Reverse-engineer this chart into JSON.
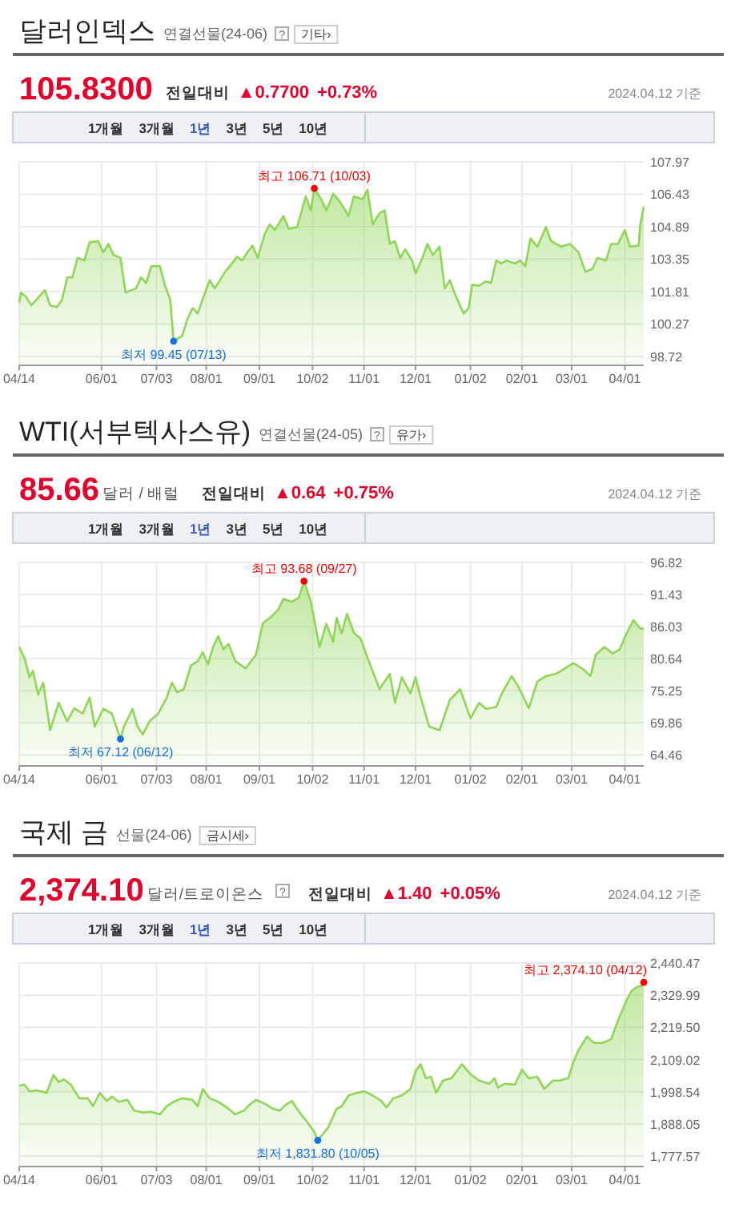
{
  "chart_data": [
    {
      "type": "area",
      "title": "달러인덱스",
      "subtitle": "연결선물(24-06)",
      "annotations": [
        "?",
        "기타›",
        "105.8300",
        "전일대비",
        "▲0.7700",
        "+0.73%",
        "2024.04.12 기준",
        "1개월",
        "3개월",
        "1년",
        "3년",
        "5년",
        "10년",
        {
          "text": "최고 106.71 (10/03)",
          "x": "2023-10-03",
          "y": 106.71
        },
        {
          "text": "최저 99.45 (07/13)",
          "x": "2023-07-13",
          "y": 99.45
        }
      ],
      "x": [
        "2023-04-14",
        "2023-04-15",
        "2023-04-18",
        "2023-04-21",
        "2023-04-24",
        "2023-04-29",
        "2023-05-02",
        "2023-05-06",
        "2023-05-09",
        "2023-05-12",
        "2023-05-15",
        "2023-05-18",
        "2023-05-22",
        "2023-05-25",
        "2023-05-30",
        "2023-06-02",
        "2023-06-05",
        "2023-06-08",
        "2023-06-12",
        "2023-06-15",
        "2023-06-21",
        "2023-06-24",
        "2023-06-27",
        "2023-06-30",
        "2023-07-05",
        "2023-07-08",
        "2023-07-11",
        "2023-07-13",
        "2023-07-18",
        "2023-07-21",
        "2023-07-24",
        "2023-07-27",
        "2023-07-31",
        "2023-08-03",
        "2023-08-06",
        "2023-08-09",
        "2023-08-12",
        "2023-08-16",
        "2023-08-19",
        "2023-08-22",
        "2023-08-25",
        "2023-08-28",
        "2023-08-31",
        "2023-09-04",
        "2023-09-07",
        "2023-09-10",
        "2023-09-15",
        "2023-09-18",
        "2023-09-23",
        "2023-09-28",
        "2023-10-01",
        "2023-10-03",
        "2023-10-07",
        "2023-10-10",
        "2023-10-14",
        "2023-10-18",
        "2023-10-23",
        "2023-10-26",
        "2023-10-31",
        "2023-11-03",
        "2023-11-06",
        "2023-11-10",
        "2023-11-13",
        "2023-11-16",
        "2023-11-19",
        "2023-11-22",
        "2023-11-25",
        "2023-11-29",
        "2023-12-01",
        "2023-12-05",
        "2023-12-08",
        "2023-12-11",
        "2023-12-15",
        "2023-12-18",
        "2023-12-21",
        "2023-12-24",
        "2023-12-29",
        "2024-01-01",
        "2024-01-03",
        "2024-01-07",
        "2024-01-11",
        "2024-01-14",
        "2024-01-17",
        "2024-01-20",
        "2024-01-23",
        "2024-01-28",
        "2024-01-31",
        "2024-02-03",
        "2024-02-06",
        "2024-02-10",
        "2024-02-15",
        "2024-02-18",
        "2024-02-24",
        "2024-02-29",
        "2024-03-05",
        "2024-03-09",
        "2024-03-13",
        "2024-03-16",
        "2024-03-21",
        "2024-03-24",
        "2024-03-28",
        "2024-04-01",
        "2024-04-04",
        "2024-04-09",
        "2024-04-10",
        "2024-04-12"
      ],
      "series": [
        {
          "color": "#8fd656",
          "values": [
            101.29,
            101.76,
            101.55,
            101.15,
            101.42,
            101.87,
            101.15,
            101.07,
            101.42,
            102.48,
            102.48,
            103.41,
            103.28,
            104.15,
            104.2,
            103.67,
            104.07,
            103.54,
            103.41,
            101.76,
            101.95,
            102.48,
            102.21,
            103.01,
            103.01,
            102.08,
            101.42,
            99.45,
            99.7,
            100.49,
            101.02,
            100.76,
            101.68,
            102.35,
            101.95,
            102.35,
            102.74,
            103.14,
            103.46,
            103.28,
            103.67,
            103.99,
            103.41,
            104.52,
            105.0,
            104.73,
            105.4,
            104.79,
            104.87,
            106.33,
            105.66,
            106.71,
            106.19,
            105.66,
            106.46,
            106.06,
            105.4,
            106.33,
            106.19,
            106.64,
            105.0,
            105.53,
            105.66,
            104.07,
            104.2,
            103.41,
            103.81,
            103.28,
            102.67,
            103.41,
            104.07,
            103.54,
            103.94,
            101.95,
            102.35,
            101.68,
            100.76,
            101.02,
            102.13,
            102.08,
            102.29,
            102.21,
            103.28,
            103.14,
            103.28,
            103.14,
            103.28,
            103.01,
            104.33,
            103.94,
            104.87,
            104.2,
            103.94,
            104.07,
            103.67,
            102.74,
            102.88,
            103.41,
            103.28,
            104.07,
            104.07,
            104.73,
            103.94,
            103.99,
            105.0,
            105.83
          ]
        }
      ],
      "xlim": [
        "2023-04-14",
        "2024-04-12"
      ],
      "xticks": [
        {
          "value": "2023-04-14",
          "label": "04/14"
        },
        {
          "value": "2023-06-01",
          "label": "06/01"
        },
        {
          "value": "2023-07-03",
          "label": "07/03"
        },
        {
          "value": "2023-08-01",
          "label": "08/01"
        },
        {
          "value": "2023-09-01",
          "label": "09/01"
        },
        {
          "value": "2023-10-02",
          "label": "10/02"
        },
        {
          "value": "2023-11-01",
          "label": "11/01"
        },
        {
          "value": "2023-12-01",
          "label": "12/01"
        },
        {
          "value": "2024-01-02",
          "label": "01/02"
        },
        {
          "value": "2024-02-01",
          "label": "02/01"
        },
        {
          "value": "2024-03-01",
          "label": "03/01"
        },
        {
          "value": "2024-04-01",
          "label": "04/01"
        }
      ],
      "ylim": [
        98.3,
        107.97
      ],
      "yticks": [
        98.72,
        100.27,
        101.81,
        103.35,
        104.89,
        106.43,
        107.97
      ],
      "grid": true
    },
    {
      "type": "area",
      "title": "WTI(서부텍사스유)",
      "subtitle": "연결선물(24-05)",
      "annotations": [
        "?",
        "유가›",
        "85.66",
        "달러 / 배럴",
        "전일대비",
        "▲0.64",
        "+0.75%",
        "2024.04.12 기준",
        "1개월",
        "3개월",
        "1년",
        "3년",
        "5년",
        "10년",
        {
          "text": "최고 93.68 (09/27)",
          "x": "2023-09-27",
          "y": 93.68
        },
        {
          "text": "최저 67.12 (06/12)",
          "x": "2023-06-12",
          "y": 67.12
        }
      ],
      "x": [
        "2023-04-14",
        "2023-04-17",
        "2023-04-20",
        "2023-04-22",
        "2023-04-25",
        "2023-04-28",
        "2023-05-02",
        "2023-05-07",
        "2023-05-12",
        "2023-05-16",
        "2023-05-21",
        "2023-05-25",
        "2023-05-28",
        "2023-06-02",
        "2023-06-07",
        "2023-06-12",
        "2023-06-14",
        "2023-06-19",
        "2023-06-22",
        "2023-06-25",
        "2023-06-29",
        "2023-07-04",
        "2023-07-09",
        "2023-07-12",
        "2023-07-15",
        "2023-07-19",
        "2023-07-23",
        "2023-07-27",
        "2023-07-30",
        "2023-08-02",
        "2023-08-05",
        "2023-08-08",
        "2023-08-11",
        "2023-08-14",
        "2023-08-18",
        "2023-08-24",
        "2023-08-30",
        "2023-09-03",
        "2023-09-08",
        "2023-09-12",
        "2023-09-15",
        "2023-09-20",
        "2023-09-24",
        "2023-09-27",
        "2023-10-01",
        "2023-10-06",
        "2023-10-10",
        "2023-10-14",
        "2023-10-16",
        "2023-10-19",
        "2023-10-22",
        "2023-10-26",
        "2023-10-30",
        "2023-11-03",
        "2023-11-10",
        "2023-11-16",
        "2023-11-19",
        "2023-11-23",
        "2023-11-28",
        "2023-12-01",
        "2023-12-04",
        "2023-12-09",
        "2023-12-15",
        "2023-12-21",
        "2023-12-27",
        "2024-01-02",
        "2024-01-07",
        "2024-01-11",
        "2024-01-17",
        "2024-01-20",
        "2024-01-26",
        "2024-01-30",
        "2024-02-05",
        "2024-02-10",
        "2024-02-15",
        "2024-02-21",
        "2024-02-26",
        "2024-03-02",
        "2024-03-08",
        "2024-03-12",
        "2024-03-15",
        "2024-03-20",
        "2024-03-25",
        "2024-03-29",
        "2024-04-02",
        "2024-04-06",
        "2024-04-10",
        "2024-04-12"
      ],
      "series": [
        {
          "color": "#8fd656",
          "values": [
            82.6,
            80.8,
            77.5,
            78.6,
            74.6,
            76.6,
            68.6,
            73.2,
            70.1,
            72.3,
            71.4,
            74.1,
            69.2,
            72.2,
            71.4,
            67.12,
            69.2,
            72.2,
            69.2,
            67.9,
            70.1,
            71.4,
            74.1,
            76.6,
            75.0,
            75.5,
            79.5,
            80.2,
            81.7,
            79.7,
            82.6,
            84.4,
            82.2,
            83.1,
            80.2,
            79.0,
            81.3,
            86.6,
            87.7,
            88.9,
            90.7,
            90.2,
            90.9,
            93.68,
            90.2,
            82.6,
            86.5,
            83.5,
            87.5,
            84.9,
            88.2,
            85.0,
            84.0,
            80.8,
            75.5,
            78.1,
            73.2,
            77.5,
            74.8,
            77.5,
            74.1,
            69.2,
            68.6,
            73.7,
            75.5,
            70.6,
            73.2,
            72.2,
            72.5,
            74.6,
            77.7,
            75.9,
            72.3,
            76.8,
            77.7,
            78.1,
            79.0,
            79.9,
            78.8,
            77.7,
            81.3,
            82.6,
            81.5,
            82.2,
            84.9,
            87.1,
            85.7,
            85.66
          ]
        }
      ],
      "xlim": [
        "2023-04-14",
        "2024-04-12"
      ],
      "xticks": [
        {
          "value": "2023-04-14",
          "label": "04/14"
        },
        {
          "value": "2023-06-01",
          "label": "06/01"
        },
        {
          "value": "2023-07-03",
          "label": "07/03"
        },
        {
          "value": "2023-08-01",
          "label": "08/01"
        },
        {
          "value": "2023-09-01",
          "label": "09/01"
        },
        {
          "value": "2023-10-02",
          "label": "10/02"
        },
        {
          "value": "2023-11-01",
          "label": "11/01"
        },
        {
          "value": "2023-12-01",
          "label": "12/01"
        },
        {
          "value": "2024-01-02",
          "label": "01/02"
        },
        {
          "value": "2024-02-01",
          "label": "02/01"
        },
        {
          "value": "2024-03-01",
          "label": "03/01"
        },
        {
          "value": "2024-04-01",
          "label": "04/01"
        }
      ],
      "ylim": [
        62.6,
        96.82
      ],
      "yticks": [
        64.46,
        69.86,
        75.25,
        80.64,
        86.03,
        91.43,
        96.82
      ],
      "grid": true
    },
    {
      "type": "area",
      "title": "국제 금",
      "subtitle": "선물(24-06)",
      "annotations": [
        "금시세›",
        "2,374.10",
        "달러/트로이온스",
        "?",
        "전일대비",
        "▲1.40",
        "+0.05%",
        "2024.04.12 기준",
        "1개월",
        "3개월",
        "1년",
        "3년",
        "5년",
        "10년",
        {
          "text": "최고 2,374.10 (04/12)",
          "x": "2024-04-12",
          "y": 2374.1
        },
        {
          "text": "최저 1,831.80 (10/05)",
          "x": "2023-10-05",
          "y": 1831.8
        }
      ],
      "x": [
        "2023-04-14",
        "2023-04-17",
        "2023-04-20",
        "2023-04-24",
        "2023-04-30",
        "2023-05-04",
        "2023-05-07",
        "2023-05-10",
        "2023-05-14",
        "2023-05-19",
        "2023-05-24",
        "2023-05-27",
        "2023-05-31",
        "2023-06-04",
        "2023-06-07",
        "2023-06-11",
        "2023-06-16",
        "2023-06-20",
        "2023-06-25",
        "2023-06-30",
        "2023-07-05",
        "2023-07-09",
        "2023-07-14",
        "2023-07-18",
        "2023-07-24",
        "2023-07-27",
        "2023-07-30",
        "2023-08-03",
        "2023-08-07",
        "2023-08-13",
        "2023-08-18",
        "2023-08-23",
        "2023-08-26",
        "2023-08-30",
        "2023-09-04",
        "2023-09-09",
        "2023-09-13",
        "2023-09-16",
        "2023-09-20",
        "2023-09-24",
        "2023-09-29",
        "2023-10-03",
        "2023-10-05",
        "2023-10-11",
        "2023-10-16",
        "2023-10-19",
        "2023-10-23",
        "2023-10-28",
        "2023-11-01",
        "2023-11-06",
        "2023-11-11",
        "2023-11-14",
        "2023-11-18",
        "2023-11-23",
        "2023-11-28",
        "2023-12-01",
        "2023-12-04",
        "2023-12-07",
        "2023-12-10",
        "2023-12-13",
        "2023-12-17",
        "2023-12-22",
        "2023-12-28",
        "2024-01-02",
        "2024-01-07",
        "2024-01-13",
        "2024-01-16",
        "2024-01-18",
        "2024-01-22",
        "2024-01-28",
        "2024-02-01",
        "2024-02-05",
        "2024-02-10",
        "2024-02-14",
        "2024-02-19",
        "2024-02-23",
        "2024-02-28",
        "2024-03-02",
        "2024-03-05",
        "2024-03-10",
        "2024-03-14",
        "2024-03-19",
        "2024-03-24",
        "2024-03-28",
        "2024-04-02",
        "2024-04-05",
        "2024-04-08",
        "2024-04-11",
        "2024-04-12"
      ],
      "series": [
        {
          "color": "#8fd656",
          "values": [
            2019,
            2023,
            2000,
            2004,
            1995,
            2056,
            2032,
            2041,
            2023,
            1976,
            1976,
            1949,
            1995,
            1967,
            1982,
            1964,
            1971,
            1934,
            1927,
            1930,
            1921,
            1949,
            1967,
            1976,
            1971,
            1949,
            2008,
            1976,
            1967,
            1945,
            1921,
            1934,
            1953,
            1971,
            1958,
            1940,
            1934,
            1953,
            1967,
            1930,
            1894,
            1860,
            1831.8,
            1875,
            1940,
            1949,
            1986,
            1995,
            2000,
            1986,
            1967,
            1945,
            1976,
            1986,
            2008,
            2069,
            2093,
            2045,
            2050,
            1995,
            2037,
            2045,
            2093,
            2059,
            2037,
            2026,
            2045,
            2013,
            2026,
            2023,
            2074,
            2045,
            2050,
            2008,
            2037,
            2037,
            2045,
            2100,
            2142,
            2188,
            2166,
            2166,
            2179,
            2243,
            2313,
            2345,
            2358,
            2363,
            2374.1
          ]
        }
      ],
      "xlim": [
        "2023-04-14",
        "2024-04-12"
      ],
      "xticks": [
        {
          "value": "2023-04-14",
          "label": "04/14"
        },
        {
          "value": "2023-06-01",
          "label": "06/01"
        },
        {
          "value": "2023-07-03",
          "label": "07/03"
        },
        {
          "value": "2023-08-01",
          "label": "08/01"
        },
        {
          "value": "2023-09-01",
          "label": "09/01"
        },
        {
          "value": "2023-10-02",
          "label": "10/02"
        },
        {
          "value": "2023-11-01",
          "label": "11/01"
        },
        {
          "value": "2023-12-01",
          "label": "12/01"
        },
        {
          "value": "2024-01-02",
          "label": "01/02"
        },
        {
          "value": "2024-02-01",
          "label": "02/01"
        },
        {
          "value": "2024-03-01",
          "label": "03/01"
        },
        {
          "value": "2024-04-01",
          "label": "04/01"
        }
      ],
      "ylim": [
        1742,
        2440.47
      ],
      "yticks": [
        {
          "value": 1777.57,
          "label": "1,777.57"
        },
        {
          "value": 1888.05,
          "label": "1,888.05"
        },
        {
          "value": 1998.54,
          "label": "1,998.54"
        },
        {
          "value": 2109.02,
          "label": "2,109.02"
        },
        {
          "value": 2219.5,
          "label": "2,219.50"
        },
        {
          "value": 2329.99,
          "label": "2,329.99"
        },
        {
          "value": 2440.47,
          "label": "2,440.47"
        }
      ],
      "grid": true
    }
  ]
}
